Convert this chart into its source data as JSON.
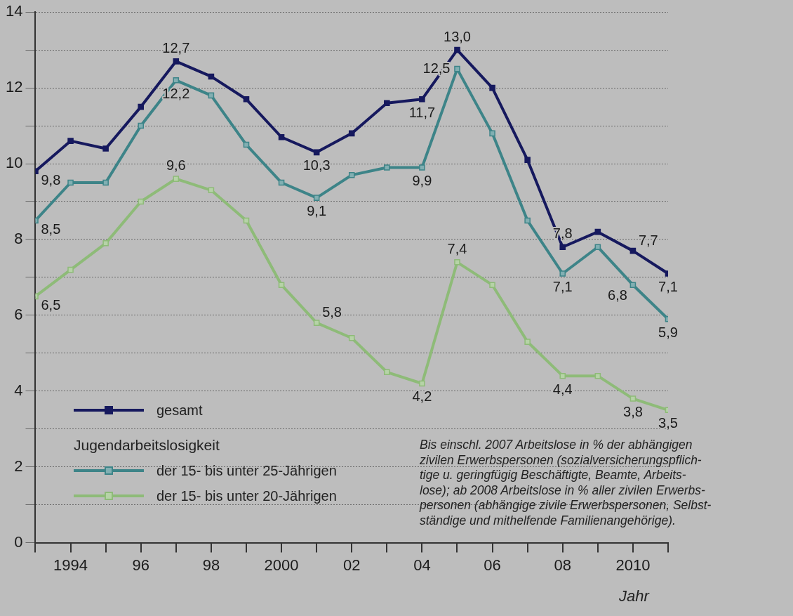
{
  "chart_data": {
    "type": "line",
    "xlabel": "Jahr",
    "legend_title": "Jugendarbeitslosigkeit",
    "x": [
      1993,
      1994,
      1995,
      1996,
      1997,
      1998,
      1999,
      2000,
      2001,
      2002,
      2003,
      2004,
      2005,
      2006,
      2007,
      2008,
      2009,
      2010,
      2011
    ],
    "xlim": [
      1993,
      2011
    ],
    "xticks": [
      {
        "value": 1993,
        "label": null
      },
      1994,
      {
        "value": 1995,
        "label": null
      },
      {
        "value": 1996,
        "label": "96"
      },
      {
        "value": 1997,
        "label": null
      },
      {
        "value": 1998,
        "label": "98"
      },
      {
        "value": 1999,
        "label": null
      },
      2000,
      {
        "value": 2001,
        "label": null
      },
      {
        "value": 2002,
        "label": "02"
      },
      {
        "value": 2003,
        "label": null
      },
      {
        "value": 2004,
        "label": "04"
      },
      {
        "value": 2005,
        "label": null
      },
      {
        "value": 2006,
        "label": "06"
      },
      {
        "value": 2007,
        "label": null
      },
      {
        "value": 2008,
        "label": "08"
      },
      {
        "value": 2009,
        "label": null
      },
      2010,
      {
        "value": 2011,
        "label": null
      }
    ],
    "ylim": [
      0,
      14
    ],
    "yticks": [
      0,
      {
        "value": 1,
        "label": null
      },
      2,
      {
        "value": 3,
        "label": null
      },
      4,
      {
        "value": 5,
        "label": null
      },
      6,
      {
        "value": 7,
        "label": null
      },
      8,
      {
        "value": 9,
        "label": null
      },
      10,
      {
        "value": 11,
        "label": null
      },
      12,
      {
        "value": 13,
        "label": null
      },
      14
    ],
    "grid": "y",
    "legend": "bottom left",
    "marker": "square",
    "line_style": "solid",
    "series": [
      {
        "name": "gesamt",
        "color": "#16195e",
        "values": [
          9.8,
          10.6,
          10.4,
          11.5,
          12.7,
          12.3,
          11.7,
          10.7,
          10.3,
          10.8,
          11.6,
          11.7,
          13.0,
          12.0,
          10.1,
          7.8,
          8.2,
          7.7,
          7.1
        ],
        "value_labels": [
          "9,8",
          null,
          null,
          null,
          "12,7",
          null,
          null,
          null,
          "10,3",
          null,
          null,
          "11,7",
          "13,0",
          null,
          null,
          "7,8",
          null,
          "7,7",
          "7,1"
        ]
      },
      {
        "name": "der 15- bis unter 25-Jährigen",
        "color": "#3d8488",
        "values": [
          8.5,
          9.5,
          9.5,
          11.0,
          12.2,
          11.8,
          10.5,
          9.5,
          9.1,
          9.7,
          9.9,
          9.9,
          12.5,
          10.8,
          8.5,
          7.1,
          7.8,
          6.8,
          5.9
        ],
        "value_labels": [
          "8,5",
          null,
          null,
          null,
          "12,2",
          null,
          null,
          null,
          "9,1",
          null,
          null,
          "9,9",
          "12,5",
          null,
          null,
          "7,1",
          null,
          "6,8",
          "5,9"
        ]
      },
      {
        "name": "der 15- bis unter 20-Jährigen",
        "color": "#8ebb78",
        "values": [
          6.5,
          7.2,
          7.9,
          9.0,
          9.6,
          9.3,
          8.5,
          6.8,
          5.8,
          5.4,
          4.5,
          4.2,
          7.4,
          6.8,
          5.3,
          4.4,
          4.4,
          3.8,
          3.5
        ],
        "value_labels": [
          "6,5",
          null,
          null,
          null,
          "9,6",
          null,
          null,
          null,
          "5,8",
          null,
          null,
          "4,2",
          "7,4",
          null,
          null,
          "4,4",
          null,
          "3,8",
          "3,5"
        ]
      }
    ],
    "annotations": [
      "Bis einschl. 2007 Arbeitslose in % der abhängigen\nzivilen Erwerbspersonen (sozialversicherungspflich-\ntige u. geringfügig Beschäftigte, Beamte, Arbeits-\nlose); ab 2008 Arbeitslose in % aller zivilen Erwerbs-\npersonen (abhängige zivile Erwerbspersonen, Selbst-\nständige und mithelfende Familienangehörige)."
    ]
  }
}
